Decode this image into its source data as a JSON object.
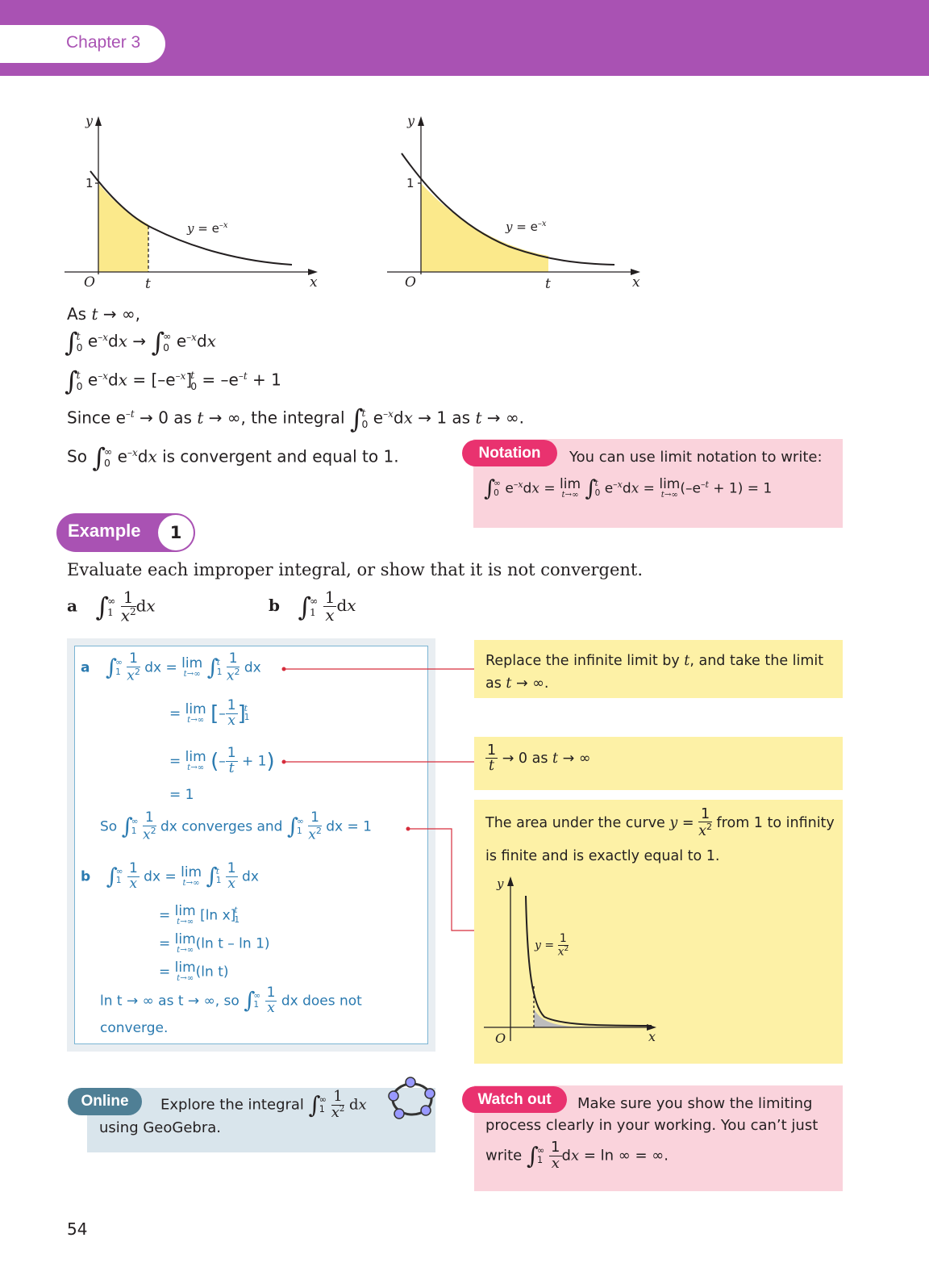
{
  "header": {
    "chapter": "Chapter 3",
    "bg_color": "#a952b3"
  },
  "graphs": {
    "left": {
      "y_axis": "y",
      "x_axis": "x",
      "origin": "O",
      "one": "1",
      "t": "t",
      "curve_label": "y = e",
      "curve_exp": "–x"
    },
    "right": {
      "y_axis": "y",
      "x_axis": "x",
      "origin": "O",
      "one": "1",
      "t": "t",
      "curve_label": "y = e",
      "curve_exp": "–x"
    }
  },
  "intro": {
    "as_t": "As ",
    "t": "t",
    "to_inf": " → ∞,",
    "inf": "∞",
    "zero": "0",
    "e": "e",
    "neg_x": "–x",
    "neg_t": "–t",
    "dx_d": "d",
    "x": "x",
    "arrow": " → ",
    "eval_rhs": " = [–e",
    "eval_end": " = –e",
    "plus_one": " + 1",
    "since": "Since e",
    "since_b": " → 0 as ",
    "since_c": " → ∞, the integral ",
    "since_d": " → 1 as ",
    "since_e": " → ∞.",
    "so": "So ",
    "so_end": " is convergent and equal to 1."
  },
  "notation_box": {
    "tag": "Notation",
    "text": "You can use limit notation to write:",
    "lim": "lim",
    "lim_sub": "t→∞",
    "end": "(–e",
    "end2": " + 1) = 1",
    "eq": " = "
  },
  "example": {
    "label": "Example",
    "number": "1"
  },
  "question": {
    "text": "Evaluate each improper integral, or show that it is not convergent.",
    "a": "a",
    "b": "b",
    "one": "1",
    "x2": "x",
    "sq": "2",
    "x": "x"
  },
  "solution": {
    "a": "a",
    "b": "b",
    "eq": "=",
    "lim": "lim",
    "lim_sub": "t→∞",
    "minus_1": "–",
    "one": "1",
    "plus1": "+ 1",
    "result1": "= 1",
    "so": "So",
    "converges_and": "dx converges and",
    "dx_eq_1": "dx = 1",
    "ln_x": "[ln x]",
    "ln_t_minus": "(ln t – ln 1)",
    "ln_t": "(ln t)",
    "concl_1": "ln t → ∞ as t → ∞, so",
    "concl_2": "dx does not",
    "concl_3": "converge."
  },
  "notes": {
    "note1": "Replace the infinite limit by",
    "note1_t": "t",
    "note1_b": ", and take the limit",
    "note1_c": "as",
    "note1_d": " → ∞.",
    "note2_a": " → 0 as ",
    "note2_b": " → ∞",
    "note3_a": "The area under the curve ",
    "note3_b": " from 1 to infinity",
    "note3_c": "is finite and is exactly equal to 1.",
    "graph": {
      "y": "y",
      "x": "x",
      "o": "O",
      "label": "y ="
    }
  },
  "online": {
    "tag": "Online",
    "text_a": "Explore the integral",
    "text_b": "using GeoGebra.",
    "icon": "geogebra-icon"
  },
  "watch_out": {
    "tag": "Watch out",
    "text_a": "Make sure you show the limiting",
    "text_b": "process clearly in your working. You can’t just",
    "text_c": "write",
    "text_d": " = ln ∞ = ∞."
  },
  "page_number": "54",
  "colors": {
    "purple": "#a952b3",
    "pink_tag": "#e9326f",
    "pink_box": "#fad3dc",
    "yellow_box": "#fdf1a6",
    "yellow_fill": "#fbe98b",
    "teal": "#4f7f95",
    "blue_box": "#d9e5ec",
    "connector": "#d62d3c"
  }
}
